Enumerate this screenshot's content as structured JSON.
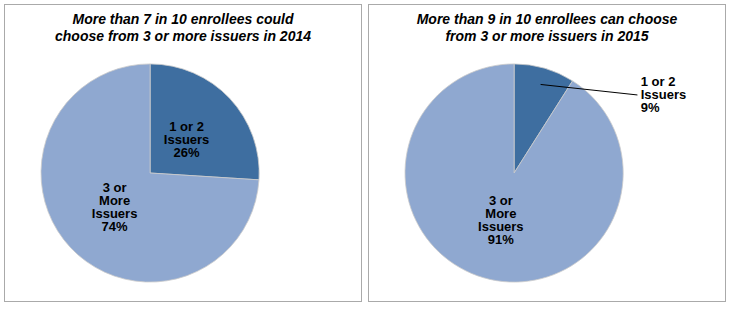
{
  "chart_data": [
    {
      "type": "pie",
      "title": "More than 7 in 10 enrollees could\nchoose from 3 or more issuers in 2014",
      "categories": [
        "1 or 2\nIssuers",
        "3 or\nMore\nIssuers"
      ],
      "values": [
        26,
        74
      ],
      "value_labels": [
        "26%",
        "74%"
      ],
      "colors": [
        "#3E6EA0",
        "#8FA8D0"
      ],
      "data_labels": true,
      "legend": false
    },
    {
      "type": "pie",
      "title": "More than 9 in 10 enrollees can choose\nfrom 3 or more issuers in 2015",
      "categories": [
        "1 or 2\nIssuers",
        "3 or\nMore\nIssuers"
      ],
      "values": [
        9,
        91
      ],
      "value_labels": [
        "9%",
        "91%"
      ],
      "colors": [
        "#3E6EA0",
        "#8FA8D0"
      ],
      "data_labels": true,
      "legend": false
    }
  ]
}
